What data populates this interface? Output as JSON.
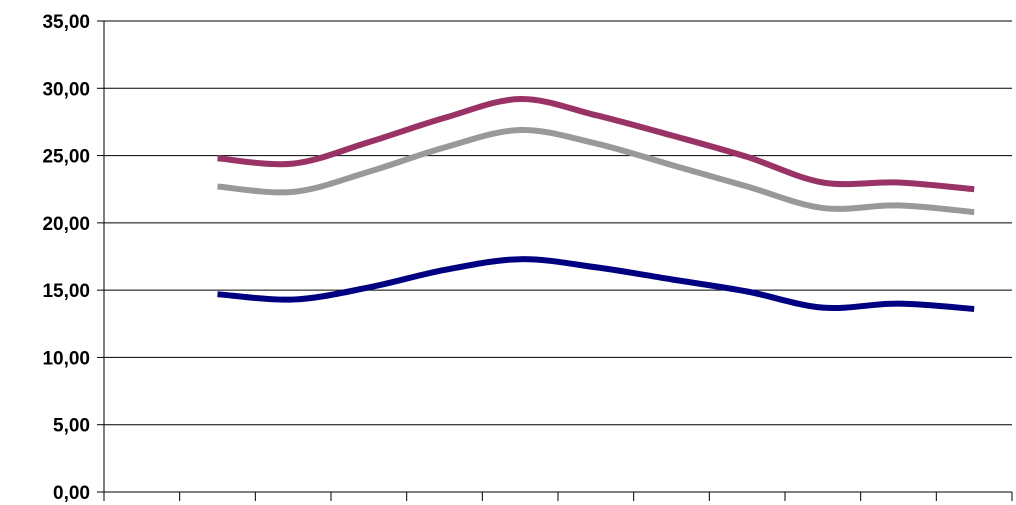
{
  "chart_data": {
    "type": "line",
    "title": "",
    "xlabel": "",
    "ylabel": "",
    "ylim": [
      0,
      35
    ],
    "y_ticks": [
      "0,00",
      "5,00",
      "10,00",
      "15,00",
      "20,00",
      "25,00",
      "30,00",
      "35,00"
    ],
    "y_tick_values": [
      0,
      5,
      10,
      15,
      20,
      25,
      30,
      35
    ],
    "grid": true,
    "legend": "none",
    "x_category_count": 12,
    "x": [
      1.5,
      2.5,
      3.5,
      4.5,
      5.5,
      6.5,
      7.5,
      8.5,
      9.5,
      10.5,
      11.5
    ],
    "series": [
      {
        "color": "#993366",
        "values": [
          24.8,
          24.4,
          26.0,
          27.8,
          29.2,
          28.0,
          26.5,
          24.9,
          23.0,
          23.0,
          22.5
        ]
      },
      {
        "color": "#999999",
        "values": [
          22.7,
          22.3,
          23.8,
          25.6,
          26.9,
          25.9,
          24.3,
          22.7,
          21.1,
          21.3,
          20.8
        ]
      },
      {
        "color": "#000080",
        "values": [
          14.7,
          14.3,
          15.2,
          16.5,
          17.3,
          16.7,
          15.8,
          14.9,
          13.7,
          14.0,
          13.6
        ]
      }
    ]
  }
}
